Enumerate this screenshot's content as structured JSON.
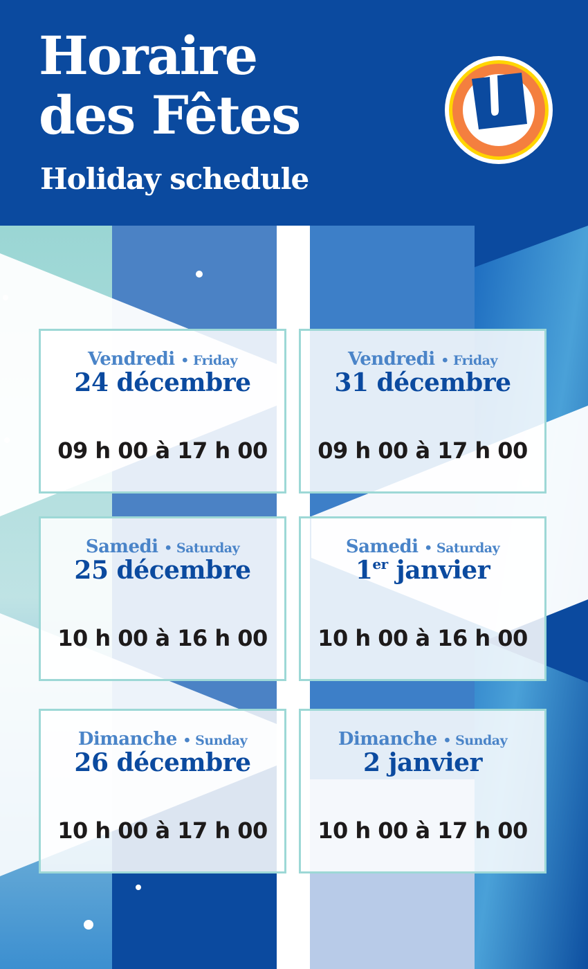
{
  "header": {
    "title_line1": "Horaire",
    "title_line2": "des Fêtes",
    "subtitle": "Holiday schedule",
    "logo_letter": "U"
  },
  "colors": {
    "brand_blue": "#0b4a9f",
    "accent_blue": "#4a84c8",
    "border_teal": "#9dd8d6",
    "logo_orange": "#f47f3f",
    "logo_yellow": "#ffd500"
  },
  "schedule": [
    {
      "day_fr": "Vendredi",
      "day_en": "Friday",
      "date_main": "24 décembre",
      "date_sup": "",
      "date_rest": "",
      "hours": "09 h 00 à 17 h 00"
    },
    {
      "day_fr": "Vendredi",
      "day_en": "Friday",
      "date_main": "31 décembre",
      "date_sup": "",
      "date_rest": "",
      "hours": "09 h 00 à 17 h 00"
    },
    {
      "day_fr": "Samedi",
      "day_en": "Saturday",
      "date_main": "25 décembre",
      "date_sup": "",
      "date_rest": "",
      "hours": "10 h 00 à 16 h 00"
    },
    {
      "day_fr": "Samedi",
      "day_en": "Saturday",
      "date_main": "1",
      "date_sup": "er",
      "date_rest": " janvier",
      "hours": "10 h 00 à 16 h 00"
    },
    {
      "day_fr": "Dimanche",
      "day_en": "Sunday",
      "date_main": "26 décembre",
      "date_sup": "",
      "date_rest": "",
      "hours": "10 h 00 à 17 h 00"
    },
    {
      "day_fr": "Dimanche",
      "day_en": "Sunday",
      "date_main": "2 janvier",
      "date_sup": "",
      "date_rest": "",
      "hours": "10 h 00 à 17 h 00"
    }
  ],
  "separator": "•"
}
